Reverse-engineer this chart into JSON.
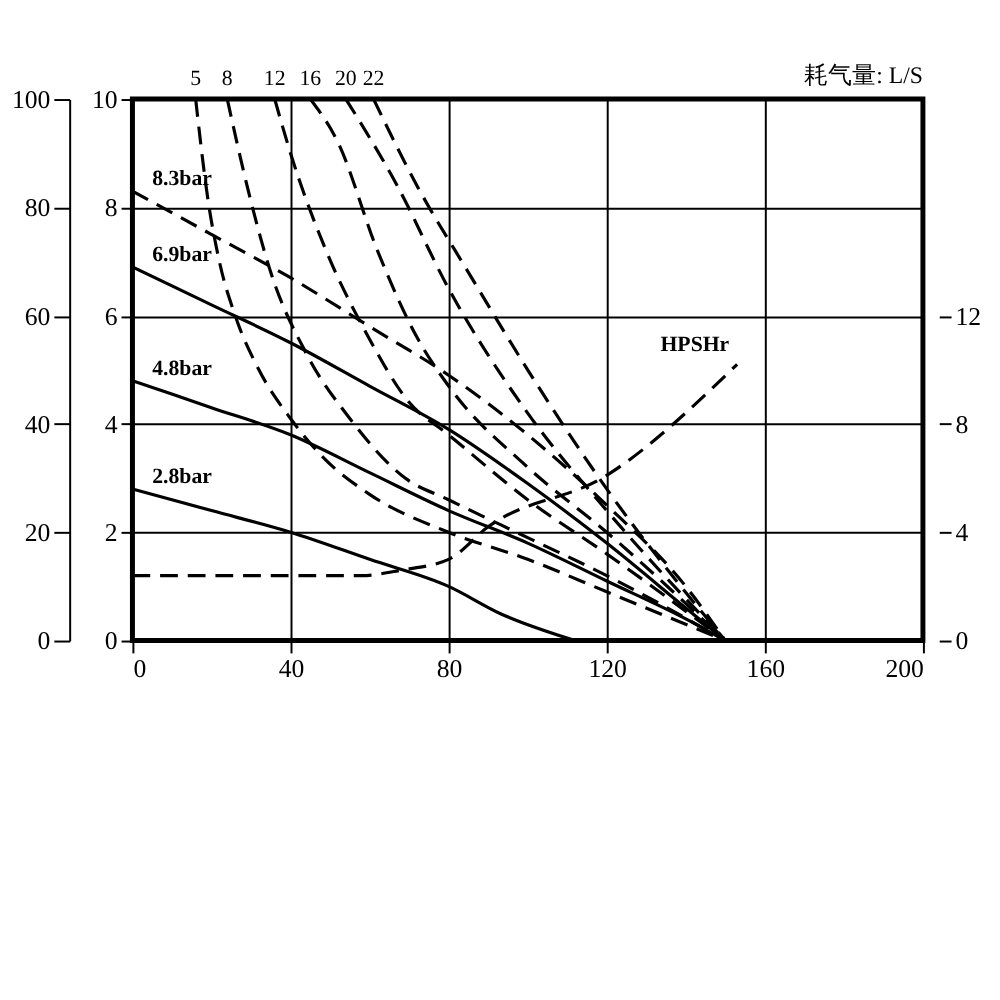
{
  "chart_data": {
    "type": "line",
    "annotations": [
      "耗气量: L/S"
    ],
    "xlim": [
      0,
      200
    ],
    "xticks": [
      0,
      40,
      80,
      120,
      160,
      200
    ],
    "ylim": [
      0,
      100
    ],
    "yticks": [
      0,
      20,
      40,
      60,
      80,
      100
    ],
    "y2lim": [
      0,
      10
    ],
    "y2ticks": [
      0,
      2,
      4,
      6,
      8,
      10
    ],
    "y3lim": [
      0,
      20
    ],
    "y3ticks": [
      0,
      4,
      8,
      12
    ],
    "grid": true,
    "marker": "none",
    "series": [
      {
        "name": "8.3bar",
        "color": "#000000",
        "line_style": "dashed",
        "x": [
          0,
          20,
          40,
          60,
          80,
          100,
          120,
          140,
          150
        ],
        "values": [
          83,
          75,
          67,
          58,
          49,
          38,
          25,
          10,
          0
        ]
      },
      {
        "name": "6.9bar",
        "color": "#000000",
        "line_style": "solid",
        "x": [
          0,
          20,
          40,
          60,
          80,
          100,
          120,
          140,
          150
        ],
        "values": [
          69,
          62,
          55,
          47,
          39,
          29,
          18,
          6,
          0
        ]
      },
      {
        "name": "4.8bar",
        "color": "#000000",
        "line_style": "solid",
        "x": [
          0,
          20,
          40,
          60,
          80,
          100,
          120,
          140,
          150
        ],
        "values": [
          48,
          43,
          38,
          31,
          24,
          18,
          11,
          4,
          0
        ]
      },
      {
        "name": "2.8bar",
        "color": "#000000",
        "line_style": "solid",
        "x": [
          0,
          20,
          40,
          60,
          80,
          93,
          112
        ],
        "values": [
          28,
          24,
          20,
          15,
          10,
          5,
          0
        ]
      },
      {
        "name": "5",
        "color": "#000000",
        "line_style": "dashed",
        "x": [
          16,
          19,
          22,
          26,
          32,
          40,
          48,
          60,
          80,
          100,
          120,
          150
        ],
        "values": [
          100,
          82,
          70,
          60,
          50,
          41,
          34,
          27,
          20,
          15,
          9,
          0
        ]
      },
      {
        "name": "8",
        "color": "#000000",
        "line_style": "dashed",
        "x": [
          24,
          29,
          35,
          44,
          55,
          69,
          80,
          100,
          120,
          150
        ],
        "values": [
          100,
          84,
          68,
          53,
          41,
          30,
          26,
          19,
          12,
          0
        ]
      },
      {
        "name": "12",
        "color": "#000000",
        "line_style": "dashed",
        "x": [
          36,
          40,
          49,
          59,
          70,
          80,
          100,
          120,
          150
        ],
        "values": [
          100,
          90,
          72,
          57,
          44,
          38,
          26,
          16,
          0
        ]
      },
      {
        "name": "16",
        "color": "#000000",
        "line_style": "dashed",
        "x": [
          45,
          52,
          62,
          72,
          80,
          100,
          120,
          150
        ],
        "values": [
          100,
          92,
          72,
          56,
          47,
          32,
          20,
          0
        ]
      },
      {
        "name": "20",
        "color": "#000000",
        "line_style": "dashed",
        "x": [
          54,
          67,
          80,
          100,
          120,
          150
        ],
        "values": [
          100,
          84,
          65,
          42,
          24,
          0
        ]
      },
      {
        "name": "22",
        "color": "#000000",
        "line_style": "dashed",
        "x": [
          61,
          72,
          85,
          100,
          120,
          150
        ],
        "values": [
          100,
          84,
          68,
          50,
          28,
          0
        ]
      },
      {
        "name": "HPSHr",
        "color": "#000000",
        "line_style": "dashed",
        "axis": "y3",
        "x": [
          0,
          58,
          68,
          80,
          90,
          120,
          153
        ],
        "values": [
          2.4,
          2.4,
          2.6,
          3.0,
          4.2,
          6.1,
          10.2
        ]
      }
    ]
  }
}
